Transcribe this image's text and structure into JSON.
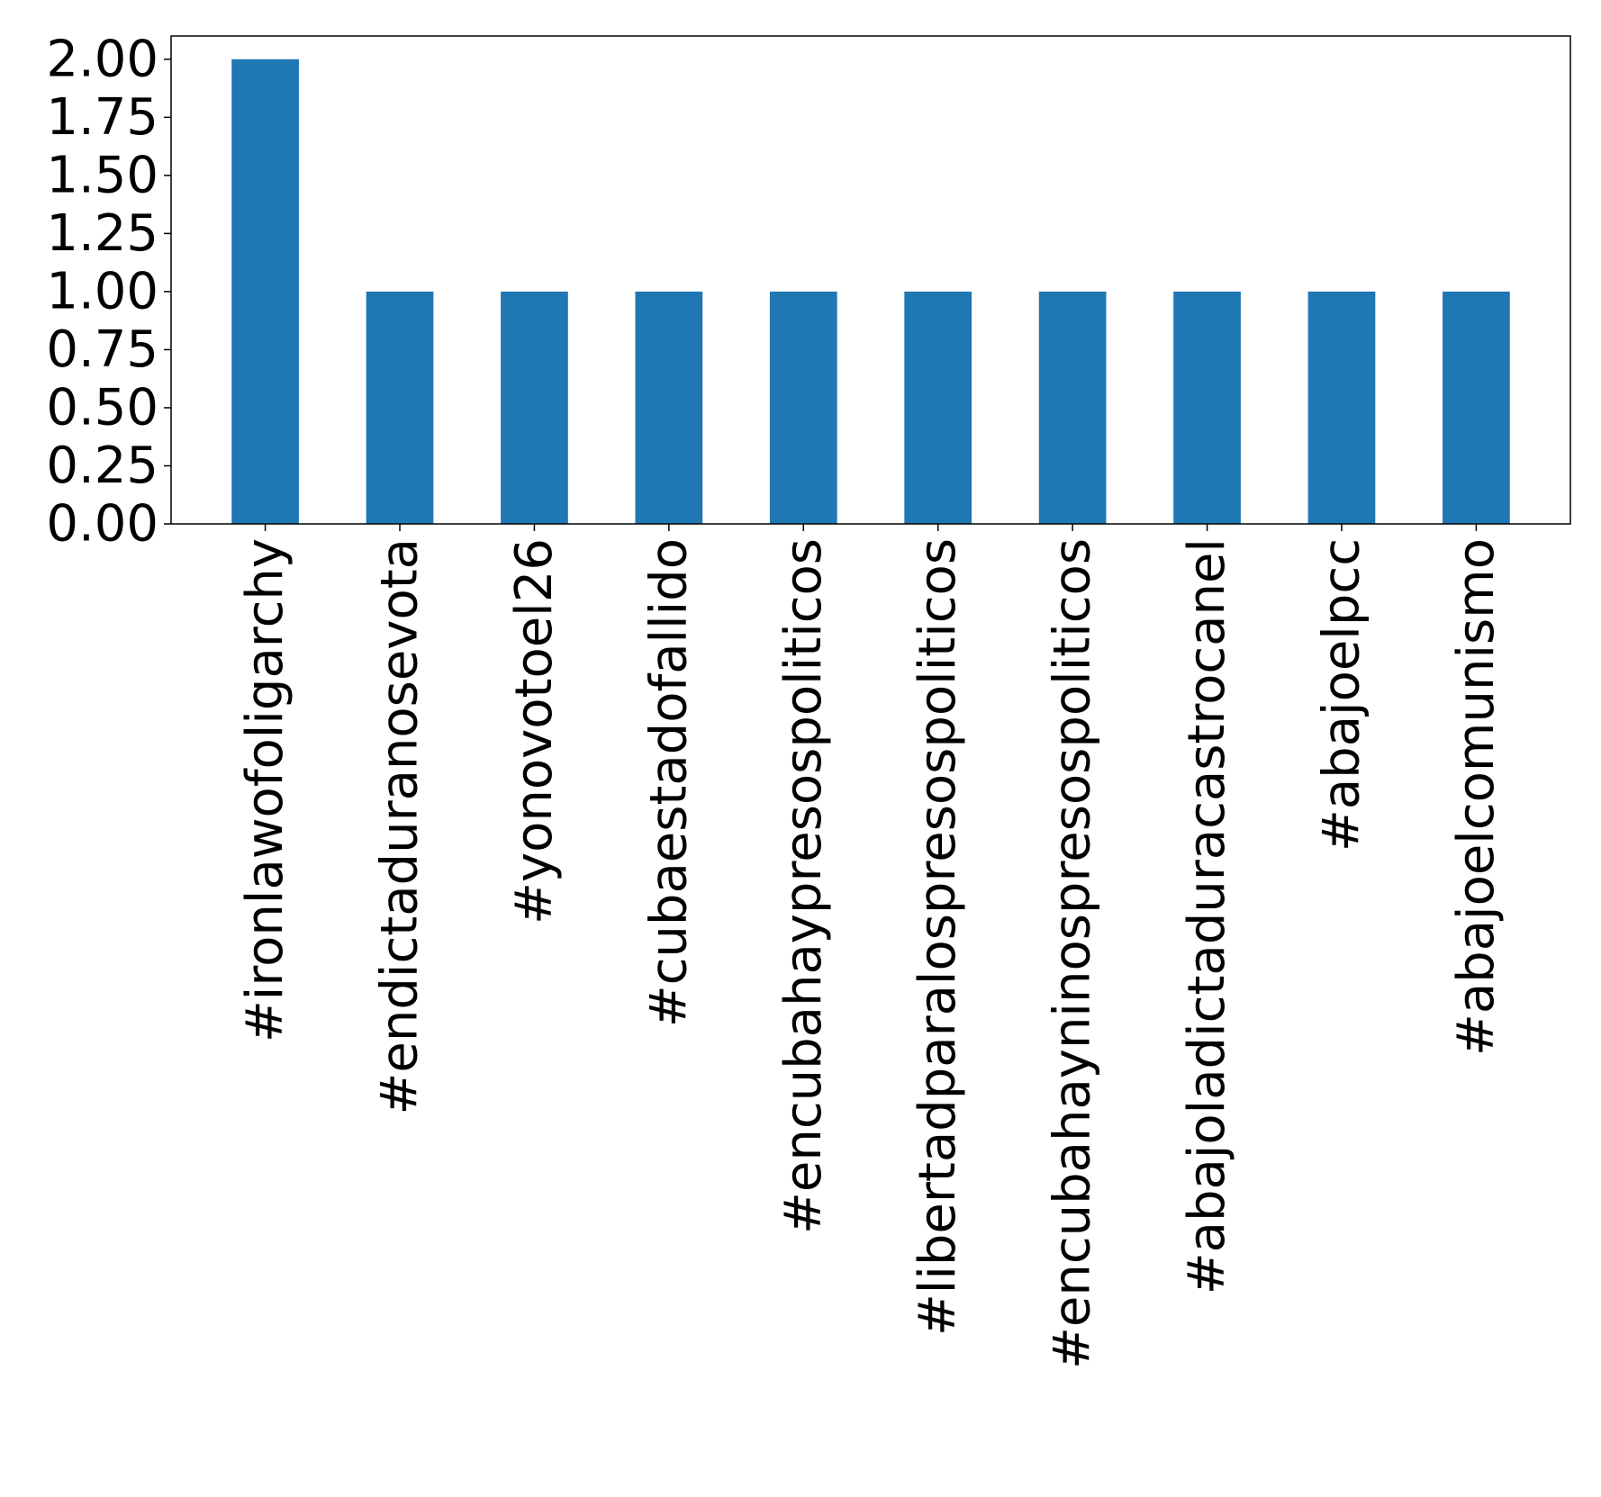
{
  "chart_data": {
    "type": "bar",
    "title": "",
    "xlabel": "",
    "ylabel": "",
    "categories": [
      "#ironlawofoligarchy",
      "#endictaduranosevota",
      "#yonovotoel26",
      "#cubaestadofallido",
      "#encubahaypresospoliticos",
      "#libertadparalospresospoliticos",
      "#encubahayninospresospoliticos",
      "#abajoladictaduracastrocanel",
      "#abajoelpcc",
      "#abajoelcomunismo"
    ],
    "values": [
      2,
      1,
      1,
      1,
      1,
      1,
      1,
      1,
      1,
      1
    ],
    "ylim": [
      0,
      2.1
    ],
    "yticks": [
      "0.00",
      "0.25",
      "0.50",
      "0.75",
      "1.00",
      "1.25",
      "1.50",
      "1.75",
      "2.00"
    ],
    "bar_color": "#1f77b4",
    "grid": false,
    "legend": "none"
  }
}
